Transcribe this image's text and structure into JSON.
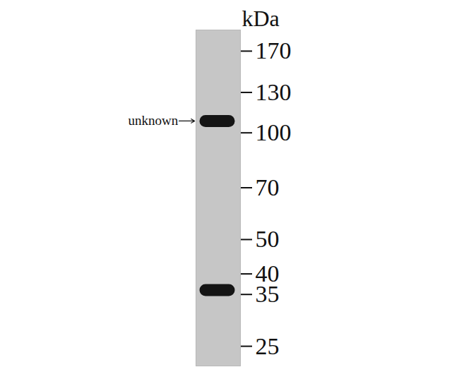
{
  "chart_data": {
    "type": "blot",
    "y_label": "kDa",
    "log": "y",
    "ylim": [
      22,
      195
    ],
    "yticks": [
      25,
      35,
      40,
      50,
      70,
      100,
      130,
      170
    ],
    "values": [
      108,
      36
    ],
    "color": "#141414",
    "annotations": [
      {
        "value": 108,
        "text": "unknown"
      }
    ]
  }
}
